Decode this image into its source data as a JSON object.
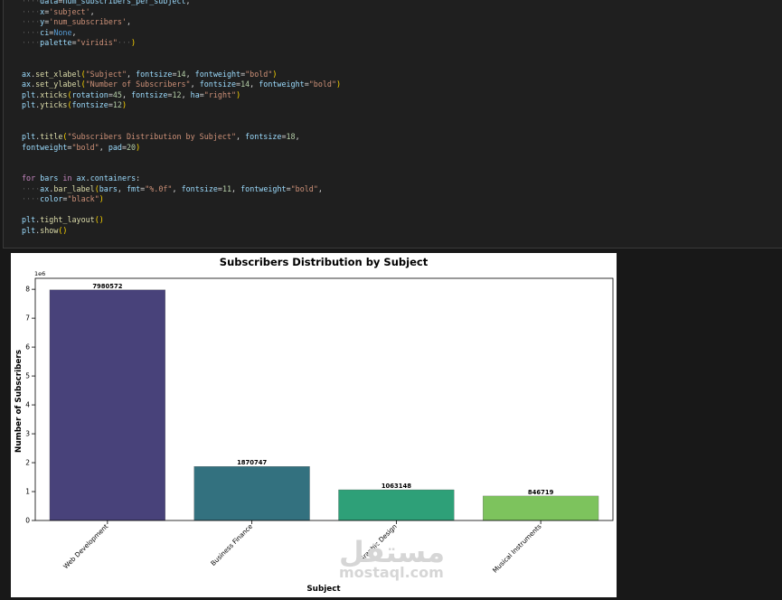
{
  "code_lines": [
    [
      [
        "g",
        "····"
      ],
      [
        "v",
        "data"
      ],
      [
        "o",
        "="
      ],
      [
        "v",
        "num_subscribers_per_subject"
      ],
      [
        "o",
        ","
      ]
    ],
    [
      [
        "g",
        "····"
      ],
      [
        "v",
        "x"
      ],
      [
        "o",
        "="
      ],
      [
        "s",
        "'subject'"
      ],
      [
        "o",
        ","
      ]
    ],
    [
      [
        "g",
        "····"
      ],
      [
        "v",
        "y"
      ],
      [
        "o",
        "="
      ],
      [
        "s",
        "'num_subscribers'"
      ],
      [
        "o",
        ","
      ]
    ],
    [
      [
        "g",
        "····"
      ],
      [
        "v",
        "ci"
      ],
      [
        "o",
        "="
      ],
      [
        "b",
        "None"
      ],
      [
        "o",
        ","
      ]
    ],
    [
      [
        "g",
        "····"
      ],
      [
        "v",
        "palette"
      ],
      [
        "o",
        "="
      ],
      [
        "s",
        "\"viridis\""
      ],
      [
        "g",
        "···"
      ],
      [
        "y",
        ")"
      ]
    ],
    [],
    [],
    [
      [
        "v",
        "ax"
      ],
      [
        "o",
        "."
      ],
      [
        "f",
        "set_xlabel"
      ],
      [
        "y",
        "("
      ],
      [
        "s",
        "\"Subject\""
      ],
      [
        "o",
        ", "
      ],
      [
        "v",
        "fontsize"
      ],
      [
        "o",
        "="
      ],
      [
        "n",
        "14"
      ],
      [
        "o",
        ", "
      ],
      [
        "v",
        "fontweight"
      ],
      [
        "o",
        "="
      ],
      [
        "s",
        "\"bold\""
      ],
      [
        "y",
        ")"
      ]
    ],
    [
      [
        "v",
        "ax"
      ],
      [
        "o",
        "."
      ],
      [
        "f",
        "set_ylabel"
      ],
      [
        "y",
        "("
      ],
      [
        "s",
        "\"Number of Subscribers\""
      ],
      [
        "o",
        ", "
      ],
      [
        "v",
        "fontsize"
      ],
      [
        "o",
        "="
      ],
      [
        "n",
        "14"
      ],
      [
        "o",
        ", "
      ],
      [
        "v",
        "fontweight"
      ],
      [
        "o",
        "="
      ],
      [
        "s",
        "\"bold\""
      ],
      [
        "y",
        ")"
      ]
    ],
    [
      [
        "v",
        "plt"
      ],
      [
        "o",
        "."
      ],
      [
        "f",
        "xticks"
      ],
      [
        "y",
        "("
      ],
      [
        "v",
        "rotation"
      ],
      [
        "o",
        "="
      ],
      [
        "n",
        "45"
      ],
      [
        "o",
        ", "
      ],
      [
        "v",
        "fontsize"
      ],
      [
        "o",
        "="
      ],
      [
        "n",
        "12"
      ],
      [
        "o",
        ", "
      ],
      [
        "v",
        "ha"
      ],
      [
        "o",
        "="
      ],
      [
        "s",
        "\"right\""
      ],
      [
        "y",
        ")"
      ]
    ],
    [
      [
        "v",
        "plt"
      ],
      [
        "o",
        "."
      ],
      [
        "f",
        "yticks"
      ],
      [
        "y",
        "("
      ],
      [
        "v",
        "fontsize"
      ],
      [
        "o",
        "="
      ],
      [
        "n",
        "12"
      ],
      [
        "y",
        ")"
      ]
    ],
    [],
    [],
    [
      [
        "v",
        "plt"
      ],
      [
        "o",
        "."
      ],
      [
        "f",
        "title"
      ],
      [
        "y",
        "("
      ],
      [
        "s",
        "\"Subscribers Distribution by Subject\""
      ],
      [
        "o",
        ", "
      ],
      [
        "v",
        "fontsize"
      ],
      [
        "o",
        "="
      ],
      [
        "n",
        "18"
      ],
      [
        "o",
        ","
      ]
    ],
    [
      [
        "v",
        "fontweight"
      ],
      [
        "o",
        "="
      ],
      [
        "s",
        "\"bold\""
      ],
      [
        "o",
        ", "
      ],
      [
        "v",
        "pad"
      ],
      [
        "o",
        "="
      ],
      [
        "n",
        "20"
      ],
      [
        "y",
        ")"
      ]
    ],
    [],
    [],
    [
      [
        "k",
        "for"
      ],
      [
        "o",
        " "
      ],
      [
        "v",
        "bars"
      ],
      [
        "o",
        " "
      ],
      [
        "k",
        "in"
      ],
      [
        "o",
        " "
      ],
      [
        "v",
        "ax"
      ],
      [
        "o",
        "."
      ],
      [
        "v",
        "containers"
      ],
      [
        "o",
        ":"
      ]
    ],
    [
      [
        "g",
        "····"
      ],
      [
        "v",
        "ax"
      ],
      [
        "o",
        "."
      ],
      [
        "f",
        "bar_label"
      ],
      [
        "y",
        "("
      ],
      [
        "v",
        "bars"
      ],
      [
        "o",
        ", "
      ],
      [
        "v",
        "fmt"
      ],
      [
        "o",
        "="
      ],
      [
        "s",
        "\"%.0f\""
      ],
      [
        "o",
        ", "
      ],
      [
        "v",
        "fontsize"
      ],
      [
        "o",
        "="
      ],
      [
        "n",
        "11"
      ],
      [
        "o",
        ", "
      ],
      [
        "v",
        "fontweight"
      ],
      [
        "o",
        "="
      ],
      [
        "s",
        "\"bold\""
      ],
      [
        "o",
        ","
      ]
    ],
    [
      [
        "g",
        "····"
      ],
      [
        "v",
        "color"
      ],
      [
        "o",
        "="
      ],
      [
        "s",
        "\"black\""
      ],
      [
        "y",
        ")"
      ]
    ],
    [],
    [
      [
        "v",
        "plt"
      ],
      [
        "o",
        "."
      ],
      [
        "f",
        "tight_layout"
      ],
      [
        "y",
        "()"
      ]
    ],
    [
      [
        "v",
        "plt"
      ],
      [
        "o",
        "."
      ],
      [
        "f",
        "show"
      ],
      [
        "y",
        "()"
      ]
    ]
  ],
  "chart_data": {
    "type": "bar",
    "title": "Subscribers Distribution by Subject",
    "xlabel": "Subject",
    "ylabel": "Number of Subscribers",
    "offset_label": "1e6",
    "categories": [
      "Web Development",
      "Business Finance",
      "Graphic Design",
      "Musical Instruments"
    ],
    "values": [
      7980572,
      1870747,
      1063148,
      846719
    ],
    "bar_labels": [
      "7980572",
      "1870747",
      "1063148",
      "846719"
    ],
    "colors": [
      "#48427a",
      "#33717f",
      "#2ea078",
      "#7dc35d"
    ],
    "yticks": [
      "0",
      "1",
      "2",
      "3",
      "4",
      "5",
      "6",
      "7",
      "8"
    ],
    "ylim": [
      0,
      8379600
    ],
    "grid": false
  },
  "watermark": {
    "arabic": "مستقل",
    "latin": "mostaql.com"
  }
}
